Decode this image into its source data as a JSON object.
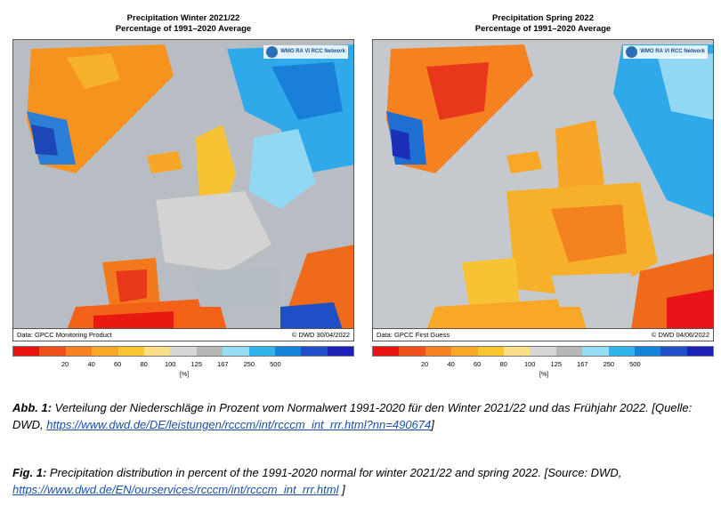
{
  "maps": [
    {
      "title_line1": "Precipitation Winter 2021/22",
      "title_line2": "Percentage of 1991–2020 Average",
      "logo": "WMO RA VI RCC Network",
      "data_source": "Data: GPCC Monitoring Product",
      "credit": "© DWD 30/04/2022"
    },
    {
      "title_line1": "Precipitation Spring 2022",
      "title_line2": "Percentage of 1991–2020 Average",
      "logo": "WMO RA VI RCC Network",
      "data_source": "Data: GPCC First Guess",
      "credit": "© DWD 04/06/2022"
    }
  ],
  "legend": {
    "colors": [
      "#e8140f",
      "#f0501a",
      "#f6821f",
      "#f8a826",
      "#f7c52e",
      "#fbdf88",
      "#d6d6d6",
      "#b7b7b7",
      "#93ddf5",
      "#2fb4ec",
      "#1483d8",
      "#1f4fc8",
      "#1c22b8"
    ],
    "ticks": [
      "20",
      "40",
      "60",
      "80",
      "100",
      "125",
      "167",
      "250",
      "500"
    ],
    "unit": "[%]"
  },
  "caption_de": {
    "label": "Abb. 1:",
    "text": " Verteilung der Niederschläge in Prozent vom Normalwert 1991-2020 für den Winter 2021/22 und das Frühjahr 2022. [Quelle: DWD, ",
    "link": "https://www.dwd.de/DE/leistungen/rcccm/int/rcccm_int_rrr.html?nn=490674",
    "end": "]"
  },
  "caption_en": {
    "label": "Fig. 1:",
    "text": " Precipitation distribution in percent of the 1991-2020 normal for winter 2021/22 and spring 2022. [Source: DWD, ",
    "link": "https://www.dwd.de/EN/ourservices/rcccm/int/rcccm_int_rrr.html",
    "end": " ]"
  }
}
